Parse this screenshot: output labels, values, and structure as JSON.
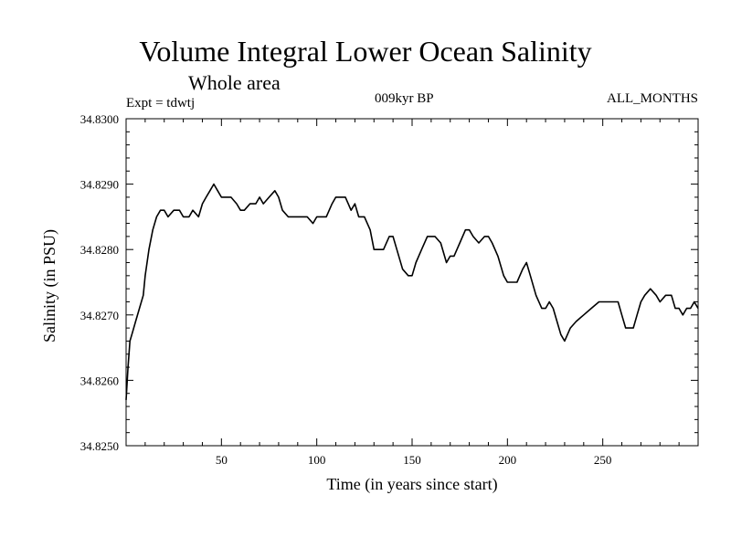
{
  "chart_data": {
    "type": "line",
    "title": "Volume Integral Lower Ocean Salinity",
    "subtitle": "Whole area",
    "experiment": "Expt = tdwtj",
    "period": "009kyr BP",
    "months": "ALL_MONTHS",
    "xlabel": "Time (in years since start)",
    "ylabel": "Salinity (in PSU)",
    "xlim": [
      0,
      300
    ],
    "ylim": [
      34.825,
      34.83
    ],
    "xticks": [
      50,
      100,
      150,
      200,
      250
    ],
    "xtick_labels": [
      "50",
      "100",
      "150",
      "200",
      "250"
    ],
    "yticks": [
      34.825,
      34.826,
      34.827,
      34.828,
      34.829,
      34.83
    ],
    "ytick_labels": [
      "34.8250",
      "34.8260",
      "34.8270",
      "34.8280",
      "34.8290",
      "34.8300"
    ],
    "grid": false,
    "series": [
      {
        "name": "Salinity",
        "color": "#000000",
        "x": [
          0,
          1,
          2,
          3,
          5,
          7,
          9,
          10,
          12,
          14,
          16,
          18,
          20,
          22,
          25,
          28,
          30,
          33,
          35,
          38,
          40,
          42,
          44,
          46,
          48,
          50,
          52,
          55,
          58,
          60,
          62,
          65,
          68,
          70,
          72,
          75,
          78,
          80,
          82,
          85,
          88,
          90,
          93,
          95,
          98,
          100,
          103,
          105,
          108,
          110,
          112,
          115,
          118,
          120,
          122,
          125,
          128,
          130,
          132,
          135,
          138,
          140,
          142,
          145,
          148,
          150,
          152,
          155,
          158,
          160,
          162,
          165,
          168,
          170,
          172,
          175,
          178,
          180,
          182,
          185,
          188,
          190,
          192,
          195,
          198,
          200,
          202,
          205,
          208,
          210,
          212,
          215,
          218,
          220,
          222,
          224,
          226,
          228,
          230,
          233,
          236,
          240,
          244,
          248,
          252,
          255,
          258,
          260,
          262,
          264,
          266,
          268,
          270,
          272,
          275,
          278,
          280,
          283,
          286,
          288,
          290,
          292,
          294,
          296,
          298,
          300
        ],
        "values": [
          34.8257,
          34.8262,
          34.8266,
          34.8267,
          34.8269,
          34.8271,
          34.8273,
          34.8276,
          34.828,
          34.8283,
          34.8285,
          34.8286,
          34.8286,
          34.8285,
          34.8286,
          34.8286,
          34.8285,
          34.8285,
          34.8286,
          34.8285,
          34.8287,
          34.8288,
          34.8289,
          34.829,
          34.8289,
          34.8288,
          34.8288,
          34.8288,
          34.8287,
          34.8286,
          34.8286,
          34.8287,
          34.8287,
          34.8288,
          34.8287,
          34.8288,
          34.8289,
          34.8288,
          34.8286,
          34.8285,
          34.8285,
          34.8285,
          34.8285,
          34.8285,
          34.8284,
          34.8285,
          34.8285,
          34.8285,
          34.8287,
          34.8288,
          34.8288,
          34.8288,
          34.8286,
          34.8287,
          34.8285,
          34.8285,
          34.8283,
          34.828,
          34.828,
          34.828,
          34.8282,
          34.8282,
          34.828,
          34.8277,
          34.8276,
          34.8276,
          34.8278,
          34.828,
          34.8282,
          34.8282,
          34.8282,
          34.8281,
          34.8278,
          34.8279,
          34.8279,
          34.8281,
          34.8283,
          34.8283,
          34.8282,
          34.8281,
          34.8282,
          34.8282,
          34.8281,
          34.8279,
          34.8276,
          34.8275,
          34.8275,
          34.8275,
          34.8277,
          34.8278,
          34.8276,
          34.8273,
          34.8271,
          34.8271,
          34.8272,
          34.8271,
          34.8269,
          34.8267,
          34.8266,
          34.8268,
          34.8269,
          34.827,
          34.8271,
          34.8272,
          34.8272,
          34.8272,
          34.8272,
          34.827,
          34.8268,
          34.8268,
          34.8268,
          34.827,
          34.8272,
          34.8273,
          34.8274,
          34.8273,
          34.8272,
          34.8273,
          34.8273,
          34.8271,
          34.8271,
          34.827,
          34.8271,
          34.8271,
          34.8272,
          34.8271
        ]
      }
    ]
  }
}
